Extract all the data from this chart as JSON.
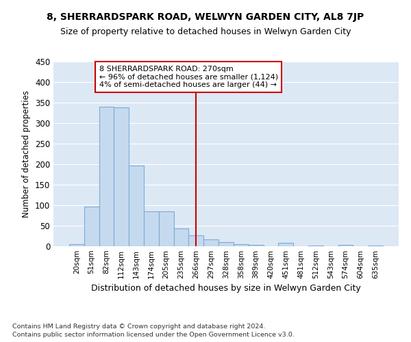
{
  "title": "8, SHERRARDSPARK ROAD, WELWYN GARDEN CITY, AL8 7JP",
  "subtitle": "Size of property relative to detached houses in Welwyn Garden City",
  "xlabel": "Distribution of detached houses by size in Welwyn Garden City",
  "ylabel": "Number of detached properties",
  "footnote1": "Contains HM Land Registry data © Crown copyright and database right 2024.",
  "footnote2": "Contains public sector information licensed under the Open Government Licence v3.0.",
  "bar_labels": [
    "20sqm",
    "51sqm",
    "82sqm",
    "112sqm",
    "143sqm",
    "174sqm",
    "205sqm",
    "235sqm",
    "266sqm",
    "297sqm",
    "328sqm",
    "358sqm",
    "389sqm",
    "420sqm",
    "451sqm",
    "481sqm",
    "512sqm",
    "543sqm",
    "574sqm",
    "604sqm",
    "635sqm"
  ],
  "bar_values": [
    5,
    97,
    340,
    338,
    197,
    85,
    85,
    43,
    26,
    17,
    10,
    5,
    4,
    0,
    8,
    0,
    2,
    0,
    3,
    0,
    2
  ],
  "bar_color": "#c5d9ef",
  "bar_edgecolor": "#7aadd4",
  "ylim": [
    0,
    450
  ],
  "yticks": [
    0,
    50,
    100,
    150,
    200,
    250,
    300,
    350,
    400,
    450
  ],
  "vline_x_index": 8,
  "annotation_text_line1": "8 SHERRARDSPARK ROAD: 270sqm",
  "annotation_text_line2": "← 96% of detached houses are smaller (1,124)",
  "annotation_text_line3": "4% of semi-detached houses are larger (44) →",
  "vline_color": "#cc0000",
  "annotation_box_edgecolor": "#cc0000",
  "bg_color": "#dde8f5",
  "grid_color": "#ffffff",
  "title_fontsize": 10,
  "subtitle_fontsize": 9
}
